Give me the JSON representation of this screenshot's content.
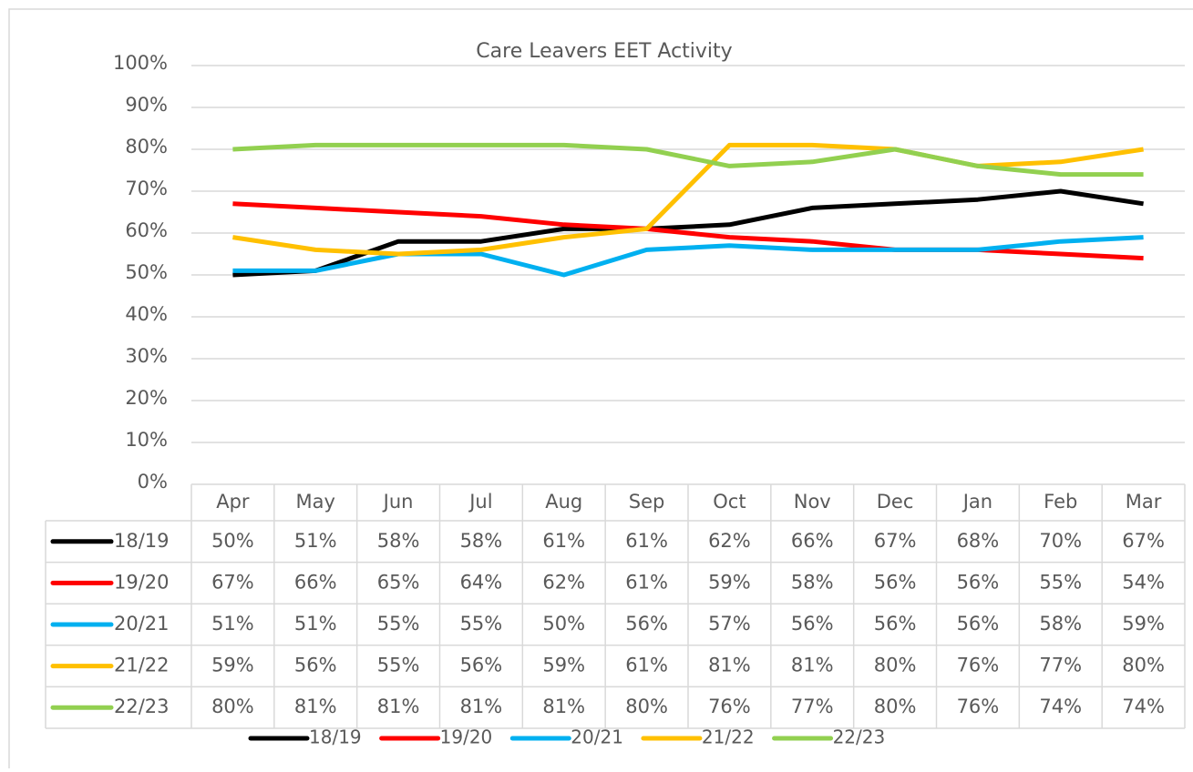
{
  "chart_data": {
    "type": "line",
    "title": "Care Leavers EET Activity",
    "categories": [
      "Apr",
      "May",
      "Jun",
      "Jul",
      "Aug",
      "Sep",
      "Oct",
      "Nov",
      "Dec",
      "Jan",
      "Feb",
      "Mar"
    ],
    "series": [
      {
        "name": "18/19",
        "color": "#000000",
        "values": [
          50,
          51,
          58,
          58,
          61,
          61,
          62,
          66,
          67,
          68,
          70,
          67
        ],
        "value_labels": [
          "50%",
          "51%",
          "58%",
          "58%",
          "61%",
          "61%",
          "62%",
          "66%",
          "67%",
          "68%",
          "70%",
          "67%"
        ]
      },
      {
        "name": "19/20",
        "color": "#ff0000",
        "values": [
          67,
          66,
          65,
          64,
          62,
          61,
          59,
          58,
          56,
          56,
          55,
          54
        ],
        "value_labels": [
          "67%",
          "66%",
          "65%",
          "64%",
          "62%",
          "61%",
          "59%",
          "58%",
          "56%",
          "56%",
          "55%",
          "54%"
        ]
      },
      {
        "name": "20/21",
        "color": "#00b0f0",
        "values": [
          51,
          51,
          55,
          55,
          50,
          56,
          57,
          56,
          56,
          56,
          58,
          59
        ],
        "value_labels": [
          "51%",
          "51%",
          "55%",
          "55%",
          "50%",
          "56%",
          "57%",
          "56%",
          "56%",
          "56%",
          "58%",
          "59%"
        ]
      },
      {
        "name": "21/22",
        "color": "#ffc000",
        "values": [
          59,
          56,
          55,
          56,
          59,
          61,
          81,
          81,
          80,
          76,
          77,
          80
        ],
        "value_labels": [
          "59%",
          "56%",
          "55%",
          "56%",
          "59%",
          "61%",
          "81%",
          "81%",
          "80%",
          "76%",
          "77%",
          "80%"
        ]
      },
      {
        "name": "22/23",
        "color": "#92d050",
        "values": [
          80,
          81,
          81,
          81,
          81,
          80,
          76,
          77,
          80,
          76,
          74,
          74
        ],
        "value_labels": [
          "80%",
          "81%",
          "81%",
          "81%",
          "81%",
          "80%",
          "76%",
          "77%",
          "80%",
          "76%",
          "74%",
          "74%"
        ]
      }
    ],
    "ylim": [
      0,
      100
    ],
    "yticks": [
      {
        "value": 0,
        "label": "0%"
      },
      {
        "value": 10,
        "label": "10%"
      },
      {
        "value": 20,
        "label": "20%"
      },
      {
        "value": 30,
        "label": "30%"
      },
      {
        "value": 40,
        "label": "40%"
      },
      {
        "value": 50,
        "label": "50%"
      },
      {
        "value": 60,
        "label": "60%"
      },
      {
        "value": 70,
        "label": "70%"
      },
      {
        "value": 80,
        "label": "80%"
      },
      {
        "value": 90,
        "label": "90%"
      },
      {
        "value": 100,
        "label": "100%"
      }
    ],
    "grid": true,
    "legend": "bottom"
  }
}
